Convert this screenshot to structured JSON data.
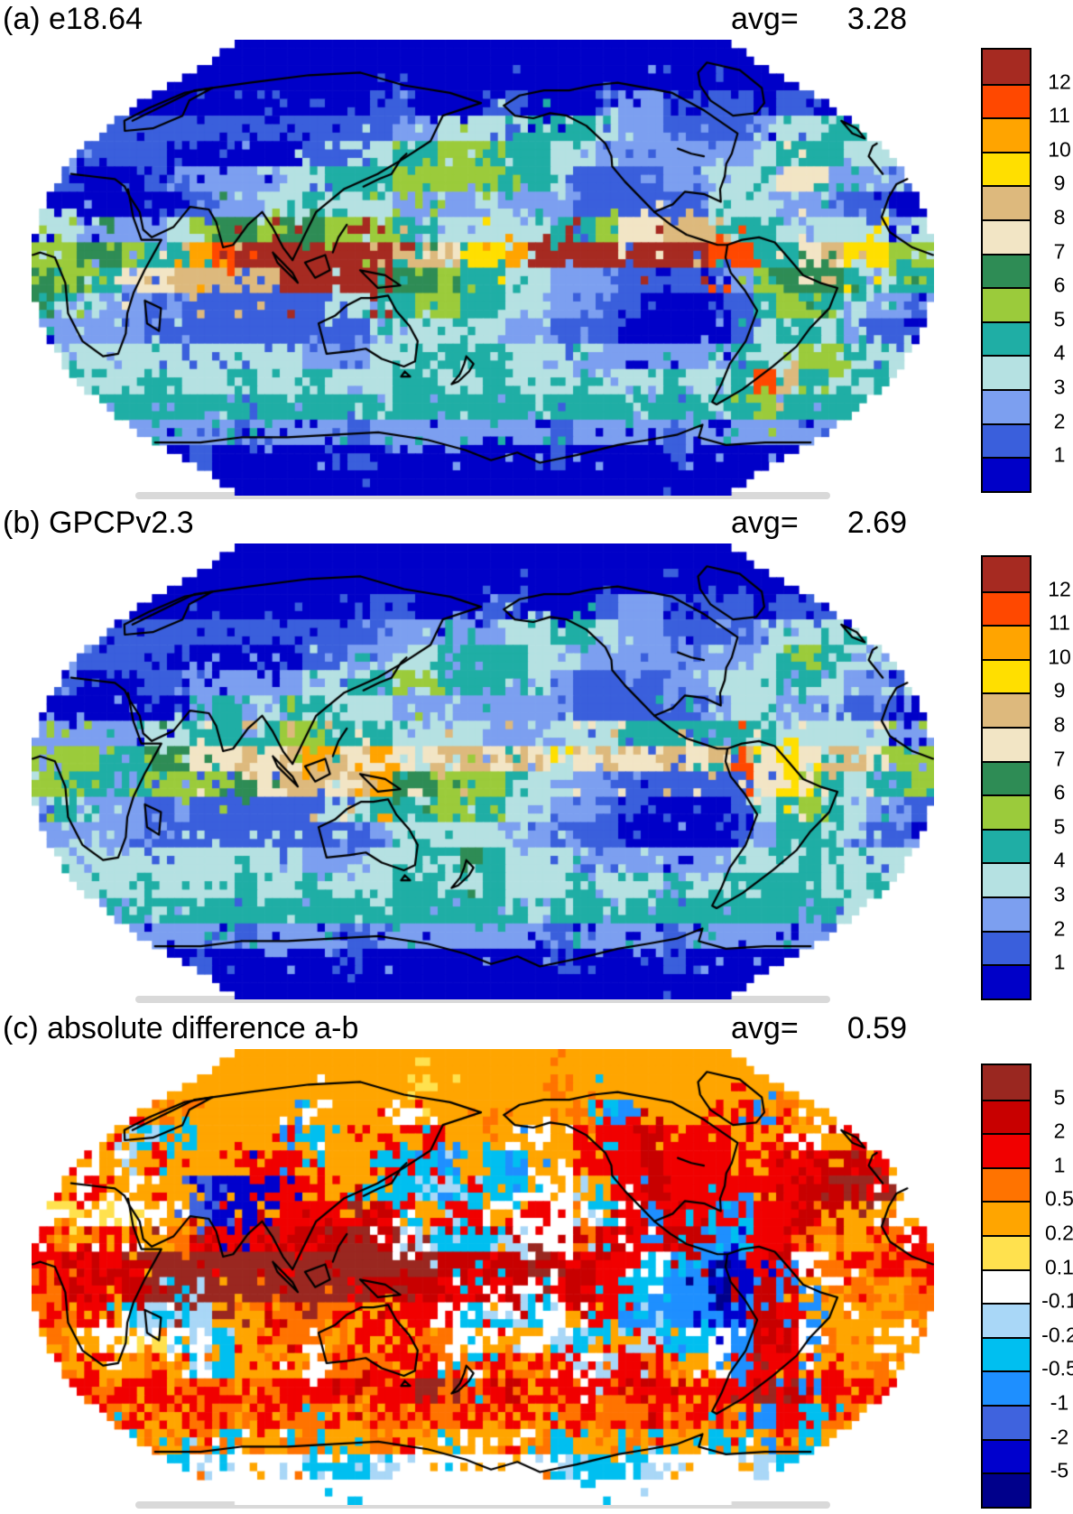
{
  "chart_data": [
    {
      "type": "heatmap",
      "projection": "robinson",
      "title": "(a) e18.64",
      "avg_label": "avg=",
      "avg_value": "3.28",
      "levels": [
        1,
        2,
        3,
        4,
        5,
        6,
        7,
        8,
        9,
        10,
        11,
        12
      ],
      "colorbar": {
        "labels": [
          "12",
          "11",
          "10",
          "9",
          "8",
          "7",
          "6",
          "5",
          "4",
          "3",
          "2",
          "1"
        ],
        "colors": [
          "#A62A21",
          "#FF4800",
          "#FFA400",
          "#FFDF00",
          "#DDB97D",
          "#F2E5C5",
          "#2E8C55",
          "#9BCB3B",
          "#1FAEA5",
          "#B5E1E2",
          "#7C9FF0",
          "#3A5FDC",
          "#0000C8"
        ]
      },
      "map": {
        "noise": 0.32,
        "palette": [
          "#0000C8",
          "#3A5FDC",
          "#7C9FF0",
          "#B5E1E2",
          "#1FAEA5",
          "#9BCB3B",
          "#2E8C55",
          "#F2E5C5",
          "#DDB97D",
          "#FFDF00",
          "#FFA400",
          "#FF4800",
          "#A62A21"
        ],
        "rows": [
          "0000000000000000000000000000000000000000",
          "1100000000000000000000000000000000011111",
          "3210000000000001100011000122101101100233",
          "2211111111111111223333444322111123344433",
          "2211110000001133445544433222222234443332",
          "1100011222233444555554431111223347742221",
          "0000000122334333222232221111113332221100",
          "3322223566566555443333344577884443333323",
          "5566544ABCCCCCCC88799ACCCCCCCCBB44789955",
          "65547788888CCCCC665443322211111256664344",
          "4432212111111334455443322110000145543221",
          "2222211111111112333332211100000134432110",
          "2333333333332223344443332222222433554333",
          "34333433343343334433433343334334B8433433",
          "4444444444444444444444444444444454444444",
          "2212222221222212222222212222122222212222",
          "0010000100000010000000010000100000010000",
          "0000000000000000000000000000000000000000"
        ]
      }
    },
    {
      "type": "heatmap",
      "projection": "robinson",
      "title": "(b) GPCPv2.3",
      "avg_label": "avg=",
      "avg_value": "2.69",
      "levels": [
        1,
        2,
        3,
        4,
        5,
        6,
        7,
        8,
        9,
        10,
        11,
        12
      ],
      "colorbar": {
        "labels": [
          "12",
          "11",
          "10",
          "9",
          "8",
          "7",
          "6",
          "5",
          "4",
          "3",
          "2",
          "1"
        ],
        "colors": [
          "#A62A21",
          "#FF4800",
          "#FFA400",
          "#FFDF00",
          "#DDB97D",
          "#F2E5C5",
          "#2E8C55",
          "#9BCB3B",
          "#1FAEA5",
          "#B5E1E2",
          "#7C9FF0",
          "#3A5FDC",
          "#0000C8"
        ]
      },
      "map": {
        "noise": 0.32,
        "palette": [
          "#0000C8",
          "#3A5FDC",
          "#7C9FF0",
          "#B5E1E2",
          "#1FAEA5",
          "#9BCB3B",
          "#2E8C55",
          "#F2E5C5",
          "#DDB97D",
          "#FFDF00",
          "#FFA400",
          "#FF4800",
          "#A62A21"
        ],
        "rows": [
          "0000000000000000000000000000000000000000",
          "1100000000000000000000000000000000011111",
          "2210000000000001100011000122101101100223",
          "2211111111111111222223344322111123334332",
          "2211110000001122334444332222222234543332",
          "1100011222223344554444321111223334432211",
          "0000000242344333222222221111112332221100",
          "2222233444455444333322233344444443333322",
          "555446677878A87A778878797877878B79788755",
          "554445555678878A665554332211111179743445",
          "3432212111111334445443322110000134543221",
          "2222211111111112333332211100000124432110",
          "2333333333332223344643332222222333443333",
          "3433343334334333443343334333433444433433",
          "4444434444444444444444344444444444443444",
          "2212222221222212222222212222122222212222",
          "0010000100000010000000010000100000010000",
          "0000000000000000000000000000000000000000"
        ]
      }
    },
    {
      "type": "heatmap",
      "projection": "robinson",
      "title": "(c) absolute difference a-b",
      "avg_label": "avg=",
      "avg_value": "0.59",
      "levels": [
        5,
        2,
        1,
        0.5,
        0.2,
        0.1,
        -0.1,
        -0.2,
        -0.5,
        -1,
        -2,
        -5
      ],
      "colorbar": {
        "labels": [
          "5",
          "2",
          "1",
          "0.5",
          "0.2",
          "0.1",
          "-0.1",
          "-0.2",
          "-0.5",
          "-1",
          "-2",
          "-5"
        ],
        "colors": [
          "#9A2720",
          "#C80000",
          "#F10000",
          "#FF7300",
          "#FFA500",
          "#FFE14E",
          "#FFFFFF",
          "#A9D7F7",
          "#00BFF0",
          "#1E8FFF",
          "#3F63DE",
          "#0000CD",
          "#00008B"
        ]
      },
      "map": {
        "noise": 0.5,
        "palette": [
          "#9A2720",
          "#C80000",
          "#F10000",
          "#FF7300",
          "#FFA500",
          "#FFE14E",
          "#FFFFFF",
          "#A9D7F7",
          "#00BFF0",
          "#1E8FFF",
          "#3F63DE",
          "#0000CD",
          "#00008B"
        ],
        "rows": [
          "4444444444444444444444444444444444444444",
          "4444434444444444454444434444444444444444",
          "3242443444446444644434443894444293442444",
          "2244788444498442424444642221222442644244",
          "4264424442224442889489442221222242211244",
          "2424644ABBB22448887888664421222221110064",
          "6565664ABB422212242246267869228922114466",
          "2342443122121101678887663122119822344232",
          "2212100000000000001111011226899B21632322",
          "312110000000000111222162128899CB19436343",
          "232487874431332422686786428999B912944343",
          "3446656784233442436646678427886912634464",
          "4324434684446332223823426723446922424344",
          "2223222322322212202321222321222201922322",
          "3233243233233243233232432332323292833233",
          "4348434384438443448444384438448443844348",
          "6667788766667887666666678887666678876666",
          "6666666666666666666666666666666666666666"
        ]
      }
    }
  ],
  "coastlines": [
    {
      "name": "scandinavia-europe",
      "points": [
        [
          4,
          58
        ],
        [
          8,
          63
        ],
        [
          16,
          69
        ],
        [
          28,
          71
        ],
        [
          24,
          66
        ],
        [
          30,
          60
        ],
        [
          22,
          55
        ],
        [
          10,
          54
        ],
        [
          4,
          58
        ]
      ]
    },
    {
      "name": "north-asia-coast",
      "points": [
        [
          8,
          58
        ],
        [
          20,
          70
        ],
        [
          45,
          73
        ],
        [
          75,
          76
        ],
        [
          105,
          77
        ],
        [
          135,
          72
        ],
        [
          162,
          69
        ],
        [
          179,
          65
        ]
      ]
    },
    {
      "name": "east-asia-coast",
      "points": [
        [
          179,
          65
        ],
        [
          160,
          60
        ],
        [
          156,
          50
        ],
        [
          145,
          43
        ],
        [
          135,
          37
        ],
        [
          122,
          31
        ],
        [
          112,
          22
        ],
        [
          108,
          12
        ],
        [
          104,
          3
        ]
      ]
    },
    {
      "name": "south-asia-coast",
      "points": [
        [
          104,
          3
        ],
        [
          100,
          8
        ],
        [
          95,
          16
        ],
        [
          90,
          22
        ],
        [
          85,
          17
        ],
        [
          80,
          9
        ],
        [
          76,
          8
        ],
        [
          72,
          18
        ],
        [
          68,
          23
        ],
        [
          60,
          24
        ],
        [
          55,
          16
        ],
        [
          47,
          12
        ],
        [
          43,
          15
        ],
        [
          40,
          22
        ],
        [
          34,
          28
        ],
        [
          30,
          32
        ],
        [
          24,
          35
        ],
        [
          14,
          36
        ],
        [
          4,
          37
        ]
      ]
    },
    {
      "name": "africa",
      "points": [
        [
          32,
          31
        ],
        [
          38,
          20
        ],
        [
          43,
          11
        ],
        [
          51,
          11
        ],
        [
          45,
          -1
        ],
        [
          40,
          -10
        ],
        [
          36,
          -18
        ],
        [
          33,
          -26
        ],
        [
          26,
          -34
        ],
        [
          19,
          -35
        ],
        [
          14,
          -29
        ],
        [
          12,
          -18
        ],
        [
          13,
          -6
        ],
        [
          9,
          4
        ],
        [
          3,
          6
        ],
        [
          0,
          5
        ]
      ]
    },
    {
      "name": "west-africa-wrap",
      "points": [
        [
          360,
          5
        ],
        [
          352,
          8
        ],
        [
          344,
          14
        ],
        [
          342,
          20
        ],
        [
          348,
          28
        ],
        [
          354,
          33
        ],
        [
          360,
          35
        ]
      ]
    },
    {
      "name": "iberia-europe-wrap",
      "points": [
        [
          351,
          37
        ],
        [
          351,
          44
        ],
        [
          357,
          48
        ],
        [
          360,
          49
        ]
      ]
    },
    {
      "name": "uk",
      "points": [
        [
          357,
          51
        ],
        [
          359,
          55
        ],
        [
          356,
          58
        ],
        [
          354,
          53
        ],
        [
          357,
          51
        ]
      ]
    },
    {
      "name": "madagascar",
      "points": [
        [
          44,
          -13
        ],
        [
          50,
          -16
        ],
        [
          47,
          -25
        ],
        [
          43,
          -22
        ],
        [
          44,
          -13
        ]
      ]
    },
    {
      "name": "sumatra",
      "points": [
        [
          96,
          6
        ],
        [
          104,
          -2
        ],
        [
          106,
          -6
        ],
        [
          98,
          2
        ],
        [
          96,
          6
        ]
      ]
    },
    {
      "name": "borneo",
      "points": [
        [
          109,
          2
        ],
        [
          117,
          5
        ],
        [
          119,
          -1
        ],
        [
          113,
          -4
        ],
        [
          109,
          2
        ]
      ]
    },
    {
      "name": "new-guinea",
      "points": [
        [
          131,
          -1
        ],
        [
          141,
          -3
        ],
        [
          147,
          -7
        ],
        [
          138,
          -8
        ],
        [
          131,
          -1
        ]
      ]
    },
    {
      "name": "japan",
      "points": [
        [
          130,
          32
        ],
        [
          136,
          35
        ],
        [
          141,
          37
        ],
        [
          144,
          43
        ],
        [
          146,
          45
        ]
      ]
    },
    {
      "name": "philippines",
      "points": [
        [
          120,
          6
        ],
        [
          122,
          12
        ],
        [
          125,
          17
        ]
      ]
    },
    {
      "name": "australia",
      "points": [
        [
          113,
          -22
        ],
        [
          114,
          -34
        ],
        [
          124,
          -33
        ],
        [
          131,
          -32
        ],
        [
          137,
          -36
        ],
        [
          146,
          -39
        ],
        [
          151,
          -37
        ],
        [
          153,
          -29
        ],
        [
          150,
          -23
        ],
        [
          145,
          -17
        ],
        [
          142,
          -11
        ],
        [
          136,
          -12
        ],
        [
          131,
          -12
        ],
        [
          125,
          -15
        ],
        [
          120,
          -19
        ],
        [
          113,
          -22
        ]
      ]
    },
    {
      "name": "tasmania",
      "points": [
        [
          146,
          -41
        ],
        [
          148,
          -43
        ],
        [
          144,
          -43
        ],
        [
          146,
          -41
        ]
      ]
    },
    {
      "name": "new-zealand",
      "points": [
        [
          173,
          -35
        ],
        [
          176,
          -38
        ],
        [
          174,
          -41
        ],
        [
          169,
          -45
        ],
        [
          166,
          -46
        ],
        [
          170,
          -42
        ],
        [
          172,
          -38
        ],
        [
          173,
          -35
        ]
      ]
    },
    {
      "name": "north-america-west",
      "points": [
        [
          191,
          64
        ],
        [
          196,
          60
        ],
        [
          205,
          59
        ],
        [
          214,
          61
        ],
        [
          222,
          60
        ],
        [
          230,
          56
        ],
        [
          236,
          49
        ],
        [
          237,
          44
        ],
        [
          236,
          40
        ],
        [
          240,
          34
        ],
        [
          244,
          29
        ],
        [
          250,
          22
        ],
        [
          256,
          17
        ],
        [
          262,
          13
        ],
        [
          268,
          11
        ],
        [
          274,
          9
        ],
        [
          278,
          9
        ]
      ]
    },
    {
      "name": "north-america-north-east",
      "points": [
        [
          191,
          64
        ],
        [
          200,
          68
        ],
        [
          214,
          70
        ],
        [
          228,
          70
        ],
        [
          243,
          72
        ],
        [
          258,
          73
        ],
        [
          272,
          71
        ],
        [
          284,
          69
        ],
        [
          293,
          62
        ],
        [
          300,
          53
        ],
        [
          291,
          45
        ],
        [
          286,
          41
        ],
        [
          283,
          36
        ],
        [
          279,
          31
        ],
        [
          278,
          26
        ],
        [
          272,
          29
        ],
        [
          264,
          30
        ],
        [
          258,
          25
        ],
        [
          250,
          22
        ]
      ]
    },
    {
      "name": "great-lakes",
      "points": [
        [
          268,
          47
        ],
        [
          273,
          45
        ],
        [
          278,
          44
        ]
      ]
    },
    {
      "name": "greenland",
      "points": [
        [
          305,
          60
        ],
        [
          301,
          66
        ],
        [
          304,
          72
        ],
        [
          312,
          77
        ],
        [
          326,
          81
        ],
        [
          340,
          78
        ],
        [
          337,
          71
        ],
        [
          328,
          65
        ],
        [
          318,
          61
        ],
        [
          305,
          60
        ]
      ]
    },
    {
      "name": "south-america",
      "points": [
        [
          278,
          9
        ],
        [
          284,
          11
        ],
        [
          291,
          12
        ],
        [
          297,
          10
        ],
        [
          302,
          4
        ],
        [
          308,
          -3
        ],
        [
          315,
          -6
        ],
        [
          322,
          -8
        ],
        [
          320,
          -16
        ],
        [
          314,
          -24
        ],
        [
          311,
          -31
        ],
        [
          305,
          -39
        ],
        [
          298,
          -48
        ],
        [
          291,
          -54
        ],
        [
          288,
          -53
        ],
        [
          287,
          -46
        ],
        [
          286,
          -38
        ],
        [
          289,
          -29
        ],
        [
          291,
          -17
        ],
        [
          285,
          -9
        ],
        [
          279,
          -2
        ],
        [
          277,
          4
        ],
        [
          278,
          9
        ]
      ]
    },
    {
      "name": "antarctica",
      "points": [
        [
          0,
          -69
        ],
        [
          25,
          -69
        ],
        [
          50,
          -67
        ],
        [
          75,
          -67
        ],
        [
          100,
          -66
        ],
        [
          125,
          -65
        ],
        [
          150,
          -68
        ],
        [
          170,
          -72
        ],
        [
          185,
          -76
        ],
        [
          200,
          -73
        ],
        [
          215,
          -77
        ],
        [
          235,
          -74
        ],
        [
          255,
          -70
        ],
        [
          270,
          -68
        ],
        [
          283,
          -66
        ],
        [
          292,
          -62
        ],
        [
          296,
          -67
        ],
        [
          315,
          -70
        ],
        [
          335,
          -69
        ],
        [
          360,
          -69
        ]
      ]
    }
  ]
}
